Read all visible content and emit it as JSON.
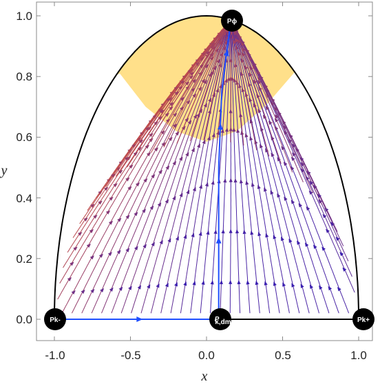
{
  "chart_data": {
    "type": "streamplot",
    "xlabel": "x",
    "ylabel": "y",
    "xlim": [
      -1.1,
      1.1
    ],
    "ylim": [
      -0.07,
      1.05
    ],
    "x_ticks": [
      "-1.0",
      "-0.5",
      "0.0",
      "0.5",
      "1.0"
    ],
    "y_ticks": [
      "0.0",
      "0.2",
      "0.4",
      "0.6",
      "0.8",
      "1.0"
    ],
    "boundary": "y = sqrt(1 - x^2) (unit semicircle), y = 0",
    "shaded_region": {
      "description": "accelerating region near top of semicircle",
      "color": "#ffe08a",
      "lower_boundary_points": [
        [
          -0.57,
          0.81
        ],
        [
          -0.4,
          0.7
        ],
        [
          -0.2,
          0.62
        ],
        [
          0.0,
          0.585
        ],
        [
          0.2,
          0.62
        ],
        [
          0.4,
          0.71
        ],
        [
          0.58,
          0.815
        ]
      ]
    },
    "stream_colors": {
      "low_y": "#3a1fb0",
      "high_y": "#e4572e"
    },
    "critical_points": [
      {
        "name": "Pk-",
        "x": -1.0,
        "y": 0.0
      },
      {
        "name": "Pk+",
        "x": 1.0,
        "y": 0.0
      },
      {
        "name": "P_{k,dm}",
        "x": 0.08,
        "y": 0.0
      },
      {
        "name": "Pφ",
        "x": 0.16,
        "y": 0.987
      }
    ],
    "highlighted_trajectories": {
      "color": "#1f4fff",
      "paths": [
        [
          [
            -1.0,
            0.0
          ],
          [
            0.08,
            0.0
          ]
        ],
        [
          [
            0.08,
            0.0
          ],
          [
            0.08,
            0.5
          ],
          [
            0.1,
            0.75
          ],
          [
            0.16,
            0.987
          ]
        ]
      ]
    }
  },
  "labels": {
    "pk_minus": "Pk-",
    "pk_plus": "Pk+",
    "p_phi": "Pϕ",
    "p_kdm_main": "P",
    "p_kdm_sub": "k,dm",
    "x_axis": "x",
    "y_axis": "y",
    "xt0": "-1.0",
    "xt1": "-0.5",
    "xt2": "0.0",
    "xt3": "0.5",
    "xt4": "1.0",
    "yt0": "0.0",
    "yt1": "0.2",
    "yt2": "0.4",
    "yt3": "0.6",
    "yt4": "0.8",
    "yt5": "1.0"
  }
}
